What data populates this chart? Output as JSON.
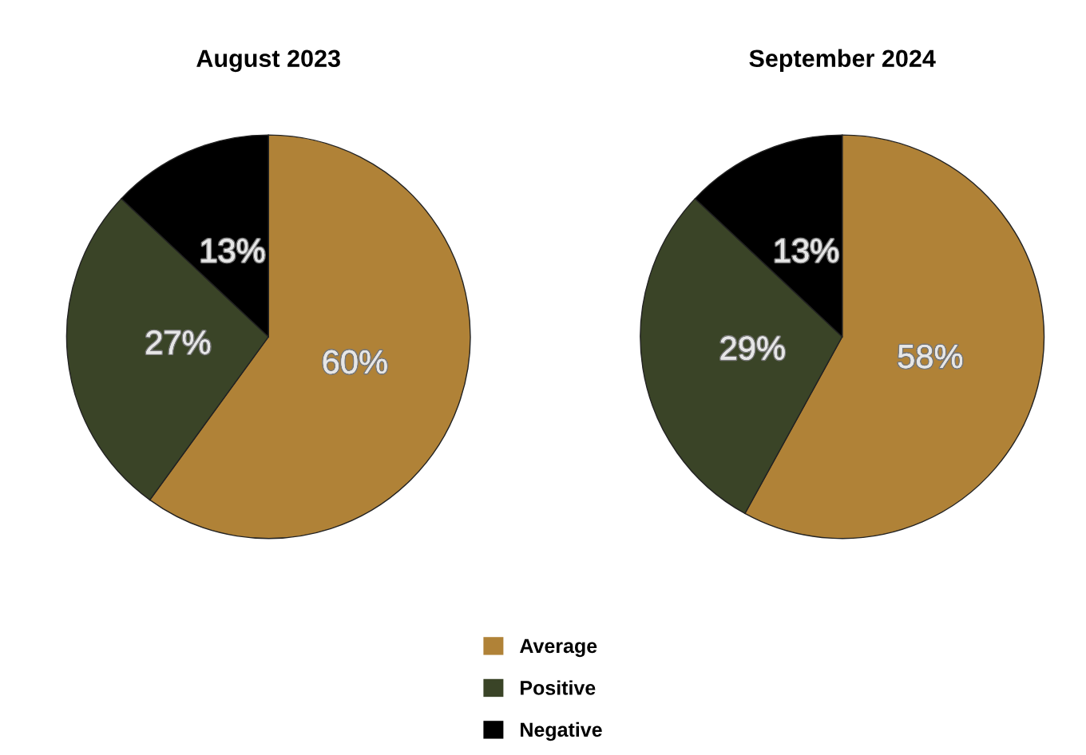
{
  "chart_data": [
    {
      "type": "pie",
      "title": "August 2023",
      "categories": [
        "Average",
        "Positive",
        "Negative"
      ],
      "values": [
        60,
        27,
        13
      ],
      "colors": [
        "#b08237",
        "#3a4427",
        "#000000"
      ],
      "value_labels": [
        "60%",
        "27%",
        "13%"
      ],
      "legend": "bottom"
    },
    {
      "type": "pie",
      "title": "September 2024",
      "categories": [
        null,
        null,
        null
      ],
      "values": [
        58,
        29,
        13
      ],
      "colors": [
        "#b08237",
        "#3a4427",
        "#000000"
      ],
      "value_labels": [
        "58%",
        "29%",
        "13%"
      ]
    }
  ]
}
